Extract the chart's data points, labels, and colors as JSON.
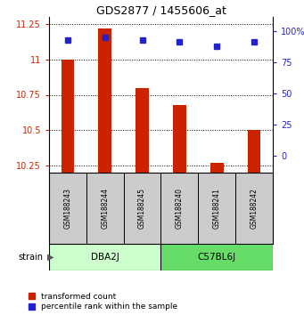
{
  "title": "GDS2877 / 1455606_at",
  "samples": [
    "GSM188243",
    "GSM188244",
    "GSM188245",
    "GSM188240",
    "GSM188241",
    "GSM188242"
  ],
  "bar_values": [
    11.0,
    11.22,
    10.8,
    10.68,
    10.27,
    10.5
  ],
  "percentile_values": [
    93,
    95,
    93,
    91,
    88,
    91
  ],
  "ylim_left": [
    10.2,
    11.3
  ],
  "ylim_right": [
    -13.75,
    111.25
  ],
  "yticks_left": [
    10.25,
    10.5,
    10.75,
    11.0,
    11.25
  ],
  "yticks_right": [
    0,
    25,
    50,
    75,
    100
  ],
  "ytick_labels_left": [
    "10.25",
    "10.5",
    "10.75",
    "11",
    "11.25"
  ],
  "ytick_labels_right": [
    "0",
    "25",
    "50",
    "75",
    "100%"
  ],
  "strains": [
    {
      "label": "DBA2J",
      "indices": [
        0,
        1,
        2
      ],
      "color": "#ccffcc"
    },
    {
      "label": "C57BL6J",
      "indices": [
        3,
        4,
        5
      ],
      "color": "#66dd66"
    }
  ],
  "bar_color": "#cc2200",
  "dot_color": "#2222cc",
  "bar_bottom": 10.2,
  "sample_box_color": "#cccccc",
  "legend_red_label": "transformed count",
  "legend_blue_label": "percentile rank within the sample",
  "strain_label": "strain"
}
